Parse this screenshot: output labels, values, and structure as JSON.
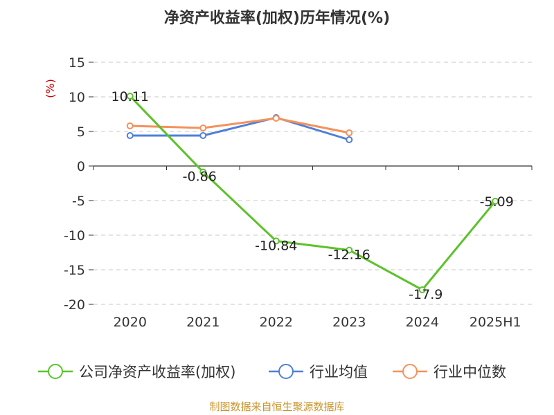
{
  "chart_data": {
    "type": "line",
    "title": "净资产收益率(加权)历年情况(%)",
    "unit_label": "(%)",
    "categories": [
      "2020",
      "2021",
      "2022",
      "2023",
      "2024",
      "2025H1"
    ],
    "ylim": [
      -20,
      15
    ],
    "yticks": [
      15,
      10,
      5,
      0,
      -5,
      -10,
      -15,
      -20
    ],
    "grid": true,
    "legend_position": "bottom",
    "series": [
      {
        "name": "公司净资产收益率(加权)",
        "color": "#5cc22a",
        "values": [
          10.11,
          -0.86,
          -10.84,
          -12.16,
          -17.9,
          -5.09
        ],
        "labels": [
          "10.11",
          "-0.86",
          "-10.84",
          "-12.16",
          "-17.9",
          "-5.09"
        ]
      },
      {
        "name": "行业均值",
        "color": "#4f7fd8",
        "values": [
          4.4,
          4.4,
          7.0,
          3.8,
          null,
          null
        ]
      },
      {
        "name": "行业中位数",
        "color": "#f5915a",
        "values": [
          5.8,
          5.5,
          6.9,
          4.8,
          null,
          null
        ]
      }
    ]
  },
  "source": "制图数据来自恒生聚源数据库"
}
